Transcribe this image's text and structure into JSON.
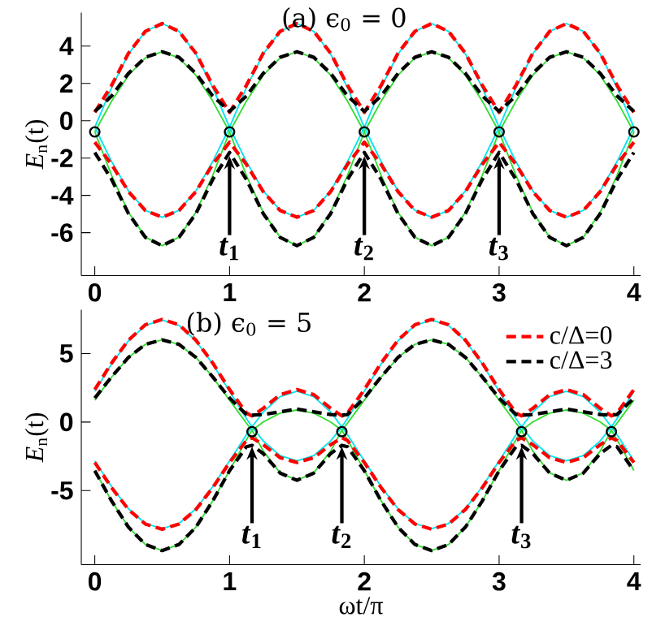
{
  "chart_data": [
    {
      "type": "line",
      "title": "(a) ϵ$_{0}$ = 0",
      "ylabel": "*E*$_{n}$(t)",
      "x": [
        0,
        0.125,
        0.25,
        0.375,
        0.5,
        0.625,
        0.75,
        0.875,
        1,
        1.125,
        1.25,
        1.375,
        1.5,
        1.625,
        1.75,
        1.875,
        2,
        2.125,
        2.25,
        2.375,
        2.5,
        2.625,
        2.75,
        2.875,
        3,
        3.125,
        3.25,
        3.375,
        3.5,
        3.625,
        3.75,
        3.875,
        4
      ],
      "xlim": [
        -0.1,
        4.05
      ],
      "ylim": [
        -8.3,
        5.8
      ],
      "xticks": [
        0,
        1,
        2,
        3,
        4
      ],
      "yticks": [
        -6,
        -4,
        -2,
        0,
        2,
        4
      ],
      "series": [
        {
          "color": "#33dd33",
          "line_style": "solid",
          "values": [
            -0.6,
            1.05,
            2.44,
            3.37,
            3.7,
            3.37,
            2.44,
            1.05,
            -0.6,
            -2.93,
            -4.91,
            -6.24,
            -6.7,
            -6.24,
            -4.91,
            -2.93,
            -0.6,
            1.05,
            2.44,
            3.37,
            3.7,
            3.37,
            2.44,
            1.05,
            -0.6,
            -2.93,
            -4.91,
            -6.24,
            -6.7,
            -6.24,
            -4.91,
            -2.93,
            -0.6
          ]
        },
        {
          "color": "#33dd33",
          "line_style": "solid",
          "values": [
            -0.6,
            -2.93,
            -4.91,
            -6.24,
            -6.7,
            -6.24,
            -4.91,
            -2.93,
            -0.6,
            1.05,
            2.44,
            3.37,
            3.7,
            3.37,
            2.44,
            1.05,
            -0.6,
            -2.93,
            -4.91,
            -6.24,
            -6.7,
            -6.24,
            -4.91,
            -2.93,
            -0.6,
            1.05,
            2.44,
            3.37,
            3.7,
            3.37,
            2.44,
            1.05,
            -0.6
          ]
        },
        {
          "color": "#00e5ee",
          "line_style": "solid",
          "values": [
            -0.35,
            1.78,
            3.58,
            4.79,
            5.21,
            4.79,
            3.58,
            1.78,
            -0.35,
            -2.19,
            -3.76,
            -4.8,
            -5.17,
            -4.8,
            -3.76,
            -2.19,
            -0.35,
            1.78,
            3.58,
            4.79,
            5.21,
            4.79,
            3.58,
            1.78,
            -0.35,
            -2.19,
            -3.76,
            -4.8,
            -5.17,
            -4.8,
            -3.76,
            -2.19,
            -0.35
          ]
        },
        {
          "color": "#00e5ee",
          "line_style": "solid",
          "values": [
            -0.35,
            -2.19,
            -3.76,
            -4.8,
            -5.17,
            -4.8,
            -3.76,
            -2.19,
            -0.35,
            1.78,
            3.58,
            4.79,
            5.21,
            4.79,
            3.58,
            1.78,
            -0.35,
            -2.19,
            -3.76,
            -4.8,
            -5.17,
            -4.8,
            -3.76,
            -2.19,
            -0.35,
            1.78,
            3.58,
            4.79,
            5.21,
            4.79,
            3.58,
            1.78,
            -0.35
          ]
        },
        {
          "color": "#ff0000",
          "line_style": "dashed",
          "values": [
            0.45,
            1.9,
            3.62,
            4.79,
            5.21,
            4.79,
            3.62,
            1.9,
            0.45,
            1.9,
            3.62,
            4.79,
            5.21,
            4.79,
            3.62,
            1.9,
            0.45,
            1.9,
            3.62,
            4.79,
            5.21,
            4.79,
            3.62,
            1.9,
            0.45,
            1.9,
            3.62,
            4.79,
            5.21,
            4.79,
            3.62,
            1.9,
            0.45
          ]
        },
        {
          "color": "#ff0000",
          "line_style": "dashed",
          "values": [
            -1.15,
            -2.34,
            -3.8,
            -4.81,
            -5.17,
            -4.81,
            -3.8,
            -2.34,
            -1.15,
            -2.34,
            -3.8,
            -4.81,
            -5.17,
            -4.81,
            -3.8,
            -2.34,
            -1.15,
            -2.34,
            -3.8,
            -4.81,
            -5.17,
            -4.81,
            -3.8,
            -2.34,
            -1.15,
            -2.34,
            -3.8,
            -4.81,
            -5.17,
            -4.81,
            -3.8,
            -2.34,
            -1.15
          ]
        },
        {
          "color": "#000000",
          "line_style": "dashed",
          "values": [
            0.5,
            1.33,
            2.54,
            3.4,
            3.7,
            3.4,
            2.54,
            1.33,
            0.5,
            1.33,
            2.54,
            3.4,
            3.7,
            3.4,
            2.54,
            1.33,
            0.5,
            1.33,
            2.54,
            3.4,
            3.7,
            3.4,
            2.54,
            1.33,
            0.5,
            1.33,
            2.54,
            3.4,
            3.7,
            3.4,
            2.54,
            1.33,
            0.5
          ]
        },
        {
          "color": "#000000",
          "line_style": "dashed",
          "values": [
            -1.7,
            -3.15,
            -4.98,
            -6.25,
            -6.7,
            -6.25,
            -4.98,
            -3.15,
            -1.7,
            -3.15,
            -4.98,
            -6.25,
            -6.7,
            -6.25,
            -4.98,
            -3.15,
            -1.7,
            -3.15,
            -4.98,
            -6.25,
            -6.7,
            -6.25,
            -4.98,
            -3.15,
            -1.7,
            -3.15,
            -4.98,
            -6.25,
            -6.7,
            -6.25,
            -4.98,
            -3.15,
            -1.7
          ]
        },
        {
          "type": "scatter",
          "color": "#000000",
          "marker": "circle",
          "x": [
            0,
            1,
            2,
            3,
            4
          ],
          "values": [
            -0.6,
            -0.6,
            -0.6,
            -0.6,
            -0.6
          ]
        }
      ],
      "annotations": [
        {
          "text": "*t*$_{1}$",
          "x": 1,
          "y": -1.9
        },
        {
          "text": "*t*$_{2}$",
          "x": 2,
          "y": -1.9
        },
        {
          "text": "*t*$_{3}$",
          "x": 3,
          "y": -1.9
        }
      ]
    },
    {
      "type": "line",
      "title": "(b) ϵ$_{0}$ = 5",
      "ylabel": "*E*$_{n}$(t)",
      "xlabel": "ωt/π",
      "x": [
        0,
        0.125,
        0.25,
        0.375,
        0.5,
        0.625,
        0.75,
        0.875,
        1,
        1.125,
        1.1667,
        1.25,
        1.375,
        1.5,
        1.625,
        1.75,
        1.8333,
        1.875,
        2,
        2.125,
        2.25,
        2.375,
        2.5,
        2.625,
        2.75,
        2.875,
        3,
        3.125,
        3.1667,
        3.25,
        3.375,
        3.5,
        3.625,
        3.75,
        3.8333,
        3.875,
        4
      ],
      "xlim": [
        -0.1,
        4.05
      ],
      "ylim": [
        -10.4,
        8.2
      ],
      "xticks": [
        0,
        1,
        2,
        3,
        4
      ],
      "yticks": [
        -5,
        0,
        5
      ],
      "legend": "top right",
      "series": [
        {
          "color": "#33dd33",
          "line_style": "solid",
          "values": [
            1.6,
            3.28,
            4.72,
            5.67,
            6.0,
            5.67,
            4.72,
            3.28,
            1.6,
            -0.08,
            -0.6,
            -2.12,
            -3.7,
            -4.25,
            -3.7,
            -2.12,
            -0.6,
            -0.08,
            1.6,
            3.28,
            4.72,
            5.67,
            6.0,
            5.67,
            4.72,
            3.28,
            1.6,
            -0.08,
            -0.6,
            -2.12,
            -3.7,
            -4.25,
            -3.7,
            -2.12,
            -0.6,
            -0.08,
            1.6
          ]
        },
        {
          "color": "#33dd33",
          "line_style": "solid",
          "values": [
            -3.53,
            -5.76,
            -7.67,
            -8.93,
            -9.38,
            -8.93,
            -7.67,
            -5.76,
            -3.53,
            -1.29,
            -0.6,
            0.01,
            0.65,
            0.88,
            0.65,
            0.01,
            -0.6,
            -1.29,
            -3.53,
            -5.76,
            -7.67,
            -8.93,
            -9.38,
            -8.93,
            -7.67,
            -5.76,
            -3.53,
            -1.29,
            -0.6,
            0.01,
            0.65,
            0.88,
            0.65,
            0.01,
            -0.6,
            -1.29,
            -3.53
          ]
        },
        {
          "color": "#00e5ee",
          "line_style": "solid",
          "values": [
            2.25,
            4.24,
            5.93,
            7.05,
            7.45,
            7.05,
            5.93,
            4.24,
            2.25,
            0.26,
            -0.35,
            -1.38,
            -2.45,
            -2.83,
            -2.45,
            -1.38,
            -0.35,
            0.26,
            2.25,
            4.24,
            5.93,
            7.05,
            7.45,
            7.05,
            5.93,
            4.24,
            2.25,
            0.26,
            -0.35,
            -1.38,
            -2.45,
            -2.83,
            -2.45,
            -1.38,
            -0.35,
            0.26,
            2.25
          ]
        },
        {
          "color": "#00e5ee",
          "line_style": "solid",
          "values": [
            -2.83,
            -4.72,
            -6.33,
            -7.4,
            -7.78,
            -7.4,
            -6.33,
            -4.72,
            -2.83,
            -0.93,
            -0.35,
            0.73,
            1.85,
            2.25,
            1.85,
            0.73,
            -0.35,
            -0.93,
            -2.83,
            -4.72,
            -6.33,
            -7.4,
            -7.78,
            -7.4,
            -6.33,
            -4.72,
            -2.83,
            -0.93,
            -0.35,
            0.73,
            1.85,
            2.25,
            1.85,
            0.73,
            -0.35,
            -0.93,
            -2.83
          ]
        },
        {
          "name": "c/Δ=0",
          "color": "#ff0000",
          "line_style": "dashed",
          "values": [
            2.37,
            4.31,
            5.98,
            7.1,
            7.49,
            7.1,
            5.98,
            4.31,
            2.37,
            0.66,
            0.45,
            1.0,
            2.0,
            2.37,
            2.0,
            1.0,
            0.45,
            0.66,
            2.37,
            4.31,
            5.98,
            7.1,
            7.49,
            7.1,
            5.98,
            4.31,
            2.37,
            0.66,
            0.45,
            1.0,
            2.0,
            2.37,
            2.0,
            1.0,
            0.45,
            0.66,
            2.37
          ]
        },
        {
          "color": "#ff0000",
          "line_style": "dashed",
          "values": [
            -2.95,
            -4.79,
            -6.38,
            -7.44,
            -7.82,
            -7.44,
            -6.38,
            -4.79,
            -2.95,
            -1.34,
            -1.15,
            -1.65,
            -2.6,
            -2.95,
            -2.6,
            -1.65,
            -1.15,
            -1.34,
            -2.95,
            -4.79,
            -6.38,
            -7.44,
            -7.82,
            -7.44,
            -6.38,
            -4.79,
            -2.95,
            -1.34,
            -1.15,
            -1.65,
            -2.6,
            -2.95,
            -2.6,
            -1.65,
            -1.15,
            -1.34,
            -2.95
          ]
        },
        {
          "name": "c/Δ=3",
          "color": "#000000",
          "line_style": "dashed",
          "values": [
            1.75,
            3.3,
            4.72,
            5.67,
            6.0,
            5.67,
            4.72,
            3.3,
            1.75,
            0.55,
            0.5,
            0.55,
            0.75,
            0.95,
            0.75,
            0.55,
            0.5,
            0.55,
            1.75,
            3.3,
            4.72,
            5.67,
            6.0,
            5.67,
            4.72,
            3.3,
            1.75,
            0.55,
            0.5,
            0.55,
            0.75,
            0.95,
            0.75,
            0.55,
            0.5,
            0.55,
            1.75
          ]
        },
        {
          "color": "#000000",
          "line_style": "dashed",
          "values": [
            -3.55,
            -5.76,
            -7.67,
            -8.93,
            -9.38,
            -8.93,
            -7.67,
            -5.76,
            -3.55,
            -1.8,
            -1.7,
            -2.3,
            -3.72,
            -4.25,
            -3.72,
            -2.3,
            -1.7,
            -1.8,
            -3.55,
            -5.76,
            -7.67,
            -8.93,
            -9.38,
            -8.93,
            -7.67,
            -5.76,
            -3.55,
            -1.8,
            -1.7,
            -2.3,
            -3.72,
            -4.25,
            -3.72,
            -2.3,
            -1.7,
            -1.8,
            -3.55
          ]
        },
        {
          "type": "scatter",
          "color": "#000000",
          "marker": "circle",
          "x": [
            1.1667,
            1.8333,
            3.1667,
            3.8333
          ],
          "values": [
            -0.7,
            -0.7,
            -0.7,
            -0.7
          ]
        }
      ],
      "annotations": [
        {
          "text": "*t*$_{1}$",
          "x": 1.1667,
          "y": -1.8
        },
        {
          "text": "*t*$_{2}$",
          "x": 1.8333,
          "y": -1.8
        },
        {
          "text": "*t*$_{3}$",
          "x": 3.1667,
          "y": -1.8
        }
      ]
    }
  ]
}
